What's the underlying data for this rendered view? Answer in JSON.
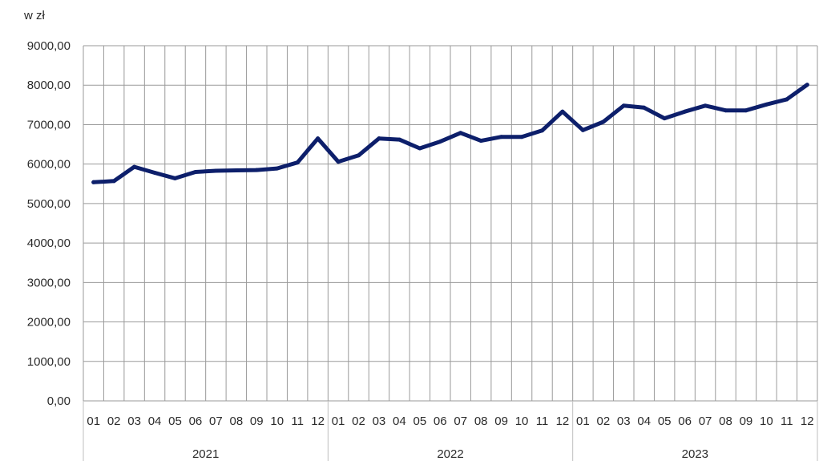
{
  "chart_data": {
    "type": "line",
    "unit_label": "w zł",
    "y_ticks": [
      "0,00",
      "1000,00",
      "2000,00",
      "3000,00",
      "4000,00",
      "5000,00",
      "6000,00",
      "7000,00",
      "8000,00",
      "9000,00"
    ],
    "ylim": [
      0,
      9000
    ],
    "grid": true,
    "months": [
      "01",
      "02",
      "03",
      "04",
      "05",
      "06",
      "07",
      "08",
      "09",
      "10",
      "11",
      "12",
      "01",
      "02",
      "03",
      "04",
      "05",
      "06",
      "07",
      "08",
      "09",
      "10",
      "11",
      "12",
      "01",
      "02",
      "03",
      "04",
      "05",
      "06",
      "07",
      "08",
      "09",
      "10",
      "11",
      "12"
    ],
    "years": [
      "2021",
      "2022",
      "2023"
    ],
    "series": [
      {
        "values": [
          5540,
          5570,
          5930,
          5780,
          5640,
          5800,
          5830,
          5840,
          5850,
          5890,
          6040,
          6650,
          6060,
          6220,
          6650,
          6620,
          6400,
          6570,
          6790,
          6590,
          6690,
          6690,
          6850,
          7330,
          6860,
          7070,
          7480,
          7430,
          7160,
          7330,
          7480,
          7360,
          7360,
          7510,
          7640,
          8010
        ],
        "color": "#0d1f6b"
      }
    ],
    "colors": {
      "line": "#0d1f6b",
      "grid": "#9a9a9a",
      "axis": "#bfbfbf"
    }
  }
}
